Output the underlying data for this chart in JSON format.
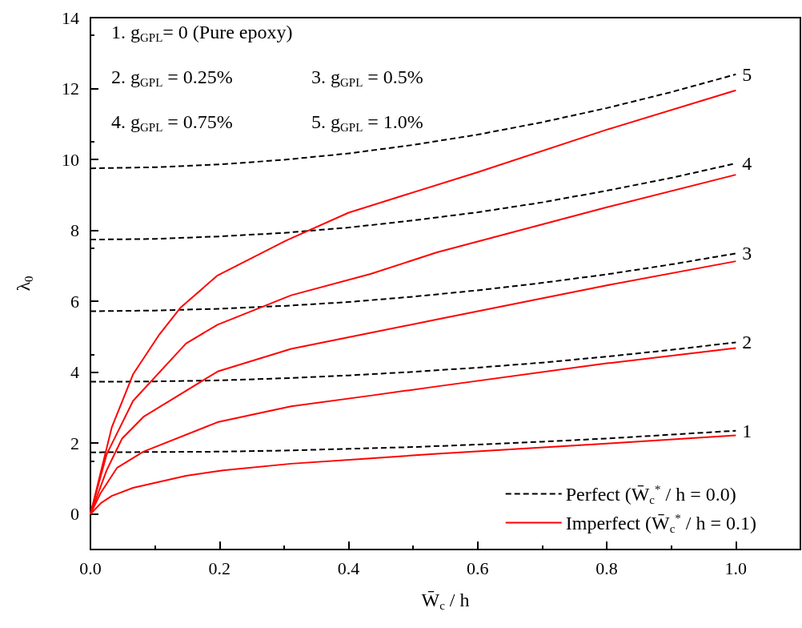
{
  "chart_data": {
    "type": "line",
    "xlabel": "W̄$_{c}$ / h",
    "ylabel": "λ$_{0}$",
    "xlim": [
      0,
      1.1
    ],
    "xticks": [
      {
        "value": 0,
        "label": "0.0"
      },
      {
        "value": 0.2,
        "label": "0.2"
      },
      {
        "value": 0.4,
        "label": "0.4"
      },
      {
        "value": 0.6,
        "label": "0.6"
      },
      {
        "value": 0.8,
        "label": "0.8"
      },
      {
        "value": 1.0,
        "label": "1.0"
      }
    ],
    "ylim": [
      -1,
      14
    ],
    "yticks": [
      0,
      2,
      4,
      6,
      8,
      10,
      12,
      14
    ],
    "grid": false,
    "legend": "bottom right",
    "marker": "none",
    "annotations": [
      "1. g$_{GPL}$= 0 (Pure epoxy)",
      "2. g$_{GPL}$ = 0.25%",
      "3. g$_{GPL}$ = 0.5%",
      "4. g$_{GPL}$ = 0.75%",
      "5. g$_{GPL}$ = 1.0%",
      "1",
      "2",
      "3",
      "4",
      "5"
    ],
    "series": [
      {
        "name": "Perfect (W̄$_{c}$$^{*}$ / h = 0.0)",
        "color": "#000000",
        "line_style": "dashed",
        "x": [
          0,
          0.1,
          0.2,
          0.3,
          0.4,
          0.5,
          0.6,
          0.7,
          0.8,
          0.9,
          1.0
        ],
        "values": [
          1.74,
          1.75,
          1.76,
          1.79,
          1.84,
          1.89,
          1.96,
          2.04,
          2.13,
          2.24,
          2.35
        ]
      },
      {
        "color": "#000000",
        "line_style": "dashed",
        "x": [
          0,
          0.1,
          0.2,
          0.3,
          0.4,
          0.5,
          0.6,
          0.7,
          0.8,
          0.9,
          1.0
        ],
        "values": [
          3.73,
          3.74,
          3.77,
          3.83,
          3.91,
          4.01,
          4.13,
          4.27,
          4.44,
          4.63,
          4.84
        ]
      },
      {
        "color": "#000000",
        "line_style": "dashed",
        "x": [
          0,
          0.1,
          0.2,
          0.3,
          0.4,
          0.5,
          0.6,
          0.7,
          0.8,
          0.9,
          1.0
        ],
        "values": [
          5.72,
          5.74,
          5.79,
          5.87,
          5.98,
          6.13,
          6.31,
          6.52,
          6.76,
          7.04,
          7.35
        ]
      },
      {
        "color": "#000000",
        "line_style": "dashed",
        "x": [
          0,
          0.1,
          0.2,
          0.3,
          0.4,
          0.5,
          0.6,
          0.7,
          0.8,
          0.9,
          1.0
        ],
        "values": [
          7.74,
          7.76,
          7.83,
          7.93,
          8.08,
          8.28,
          8.51,
          8.79,
          9.12,
          9.48,
          9.89
        ]
      },
      {
        "color": "#000000",
        "line_style": "dashed",
        "x": [
          0,
          0.1,
          0.2,
          0.3,
          0.4,
          0.5,
          0.6,
          0.7,
          0.8,
          0.9,
          1.0
        ],
        "values": [
          9.75,
          9.78,
          9.86,
          9.99,
          10.17,
          10.41,
          10.7,
          11.05,
          11.45,
          11.9,
          12.4
        ]
      },
      {
        "name": "Imperfect (W̄$_{c}$$^{*}$ / h = 0.1)",
        "color": "#ff0000",
        "line_style": "solid",
        "x": [
          0,
          0.017,
          0.033,
          0.066,
          0.148,
          0.205,
          0.311,
          0.434,
          0.537,
          0.8,
          1.0
        ],
        "values": [
          0,
          0.32,
          0.51,
          0.74,
          1.08,
          1.23,
          1.42,
          1.57,
          1.7,
          1.99,
          2.22
        ]
      },
      {
        "color": "#ff0000",
        "line_style": "solid",
        "x": [
          0,
          0.016,
          0.041,
          0.082,
          0.197,
          0.311,
          0.434,
          0.537,
          0.8,
          1.0
        ],
        "values": [
          0,
          0.6,
          1.3,
          1.76,
          2.59,
          3.04,
          3.34,
          3.6,
          4.25,
          4.68
        ]
      },
      {
        "color": "#ff0000",
        "line_style": "solid",
        "x": [
          0,
          0.025,
          0.049,
          0.082,
          0.197,
          0.311,
          0.434,
          0.537,
          0.8,
          1.0
        ],
        "values": [
          0,
          1.23,
          2.13,
          2.74,
          4.02,
          4.66,
          5.11,
          5.49,
          6.45,
          7.13
        ]
      },
      {
        "color": "#ff0000",
        "line_style": "solid",
        "x": [
          0,
          0.025,
          0.066,
          0.148,
          0.197,
          0.311,
          0.434,
          0.537,
          0.8,
          1.0
        ],
        "values": [
          0,
          1.68,
          3.19,
          4.81,
          5.34,
          6.17,
          6.77,
          7.38,
          8.65,
          9.57
        ]
      },
      {
        "color": "#ff0000",
        "line_style": "solid",
        "x": [
          0,
          0.033,
          0.066,
          0.107,
          0.14,
          0.197,
          0.303,
          0.4,
          0.6,
          0.8,
          1.0
        ],
        "values": [
          0,
          2.44,
          3.94,
          5.07,
          5.83,
          6.73,
          7.71,
          8.5,
          9.64,
          10.84,
          11.95
        ]
      }
    ]
  }
}
